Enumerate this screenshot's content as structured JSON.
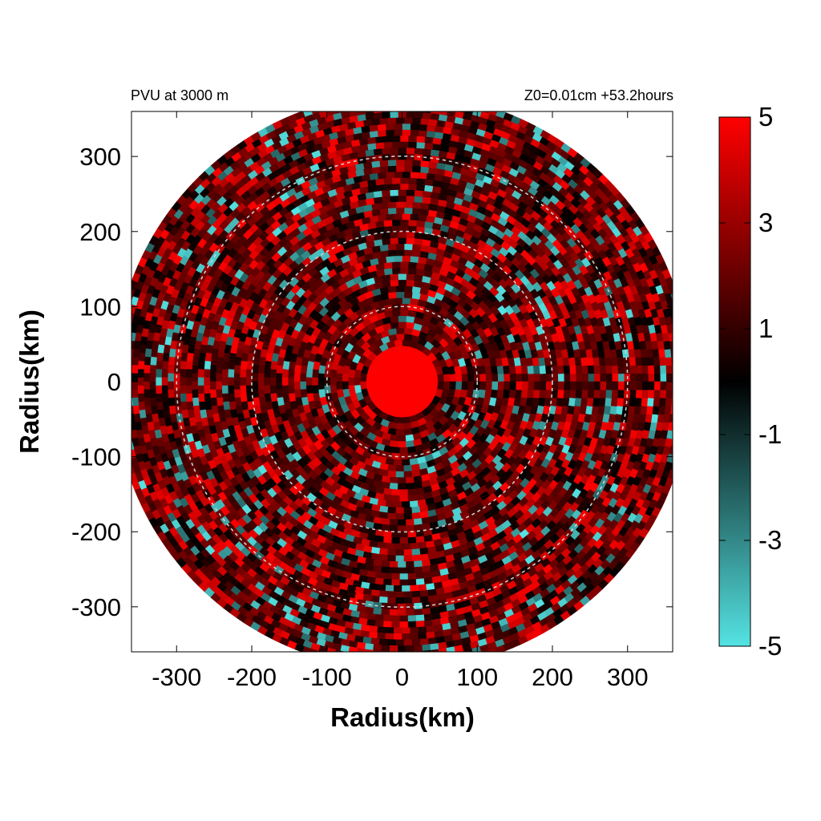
{
  "chart_data": {
    "type": "heatmap",
    "title_left": "PVU at  3000 m",
    "title_right": "Z0=0.01cm  +53.2hours",
    "xlabel": "Radius(km)",
    "ylabel": "Radius(km)",
    "xlim": [
      -360,
      360
    ],
    "ylim": [
      -360,
      360
    ],
    "x_ticks": [
      -300,
      -200,
      -100,
      0,
      100,
      200,
      300
    ],
    "y_ticks": [
      300,
      200,
      100,
      0,
      -100,
      -200,
      -300
    ],
    "x_tick_labels": [
      "-300",
      "-200",
      "-100",
      "0",
      "100",
      "200",
      "300"
    ],
    "y_tick_labels": [
      "300",
      "200",
      "100",
      "0",
      "-100",
      "-200",
      "-300"
    ],
    "domain_radius_km": 380,
    "reference_circles_km": [
      100,
      200,
      300
    ],
    "colorbar": {
      "min": -5,
      "max": 5,
      "ticks": [
        5,
        3,
        1,
        -1,
        -3,
        -5
      ],
      "tick_labels": [
        "5",
        "3",
        "1",
        "-1",
        "-3",
        "-5"
      ],
      "colors": {
        "negative": "#55e3e3",
        "zero": "#000000",
        "positive": "#ff0000"
      }
    },
    "features": {
      "core_radius_km": 55,
      "core_value": 5,
      "background_value": 1.4,
      "negative_patch_fraction": 0.12
    },
    "grid": false
  }
}
